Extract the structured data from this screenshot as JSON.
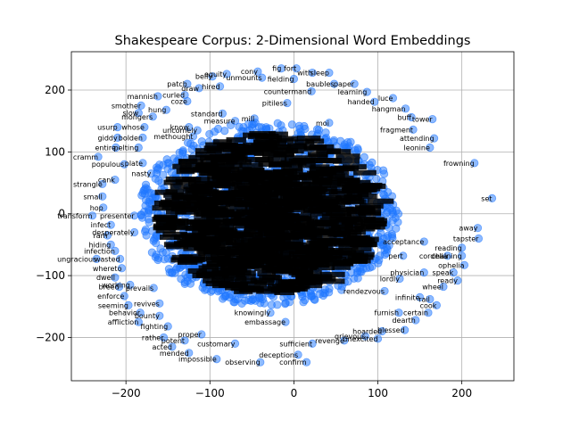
{
  "chart_data": {
    "type": "scatter",
    "title": "Shakespeare Corpus: 2-Dimensional Word Embeddings",
    "xlabel": "",
    "ylabel": "",
    "xlim": [
      -265,
      262
    ],
    "ylim": [
      -270,
      262
    ],
    "xticks": [
      -200,
      -100,
      0,
      100,
      200
    ],
    "yticks": [
      -200,
      -100,
      0,
      100,
      200
    ],
    "xtick_labels": [
      "−200",
      "−100",
      "0",
      "100",
      "200"
    ],
    "ytick_labels": [
      "−200",
      "−100",
      "0",
      "100",
      "200"
    ],
    "grid": true,
    "marker_color": "#1f77ff",
    "marker_alpha": 0.5,
    "points": [
      {
        "label": "fig",
        "x": -15,
        "y": 235
      },
      {
        "label": "fort",
        "x": 3,
        "y": 235
      },
      {
        "label": "cony",
        "x": -43,
        "y": 230
      },
      {
        "label": "with",
        "x": 22,
        "y": 228
      },
      {
        "label": "sleep",
        "x": 42,
        "y": 228
      },
      {
        "label": "equity",
        "x": -80,
        "y": 226
      },
      {
        "label": "belly",
        "x": -97,
        "y": 222
      },
      {
        "label": "unmounts",
        "x": -38,
        "y": 220
      },
      {
        "label": "fielding",
        "x": 0,
        "y": 218
      },
      {
        "label": "patch",
        "x": -127,
        "y": 210
      },
      {
        "label": "draw",
        "x": -113,
        "y": 203
      },
      {
        "label": "hired",
        "x": -88,
        "y": 206
      },
      {
        "label": "baubles",
        "x": 48,
        "y": 210
      },
      {
        "label": "paper",
        "x": 72,
        "y": 210
      },
      {
        "label": "countermand",
        "x": 21,
        "y": 198
      },
      {
        "label": "learning",
        "x": 87,
        "y": 197
      },
      {
        "label": "mannish",
        "x": -162,
        "y": 190
      },
      {
        "label": "curled",
        "x": -130,
        "y": 192
      },
      {
        "label": "coze",
        "x": -127,
        "y": 182
      },
      {
        "label": "luce",
        "x": 118,
        "y": 187
      },
      {
        "label": "handed",
        "x": 96,
        "y": 181
      },
      {
        "label": "smother",
        "x": -182,
        "y": 175
      },
      {
        "label": "hung",
        "x": -152,
        "y": 168
      },
      {
        "label": "pitiless",
        "x": -8,
        "y": 179
      },
      {
        "label": "hangman",
        "x": 133,
        "y": 170
      },
      {
        "label": "slow",
        "x": -185,
        "y": 163
      },
      {
        "label": "standard",
        "x": -85,
        "y": 162
      },
      {
        "label": "mongers",
        "x": -168,
        "y": 157
      },
      {
        "label": "buff",
        "x": 140,
        "y": 156
      },
      {
        "label": "tower",
        "x": 165,
        "y": 153
      },
      {
        "label": "mill",
        "x": -47,
        "y": 154
      },
      {
        "label": "moi",
        "x": 42,
        "y": 147
      },
      {
        "label": "measure",
        "x": -70,
        "y": 150
      },
      {
        "label": "usurp",
        "x": -210,
        "y": 140
      },
      {
        "label": "whose",
        "x": -178,
        "y": 140
      },
      {
        "label": "fragment",
        "x": 142,
        "y": 136
      },
      {
        "label": "know",
        "x": -125,
        "y": 140
      },
      {
        "label": "giddy",
        "x": -210,
        "y": 123
      },
      {
        "label": "bolden",
        "x": -180,
        "y": 123
      },
      {
        "label": "attending",
        "x": 167,
        "y": 122
      },
      {
        "label": "methought",
        "x": -120,
        "y": 125
      },
      {
        "label": "uncomely",
        "x": -115,
        "y": 135
      },
      {
        "label": "entire",
        "x": -212,
        "y": 107
      },
      {
        "label": "pelting",
        "x": -185,
        "y": 107
      },
      {
        "label": "leonine",
        "x": 162,
        "y": 107
      },
      {
        "label": "cramm",
        "x": -233,
        "y": 92
      },
      {
        "label": "populous",
        "x": -202,
        "y": 80
      },
      {
        "label": "plate",
        "x": -180,
        "y": 82
      },
      {
        "label": "frowning",
        "x": 215,
        "y": 82
      },
      {
        "label": "nasty",
        "x": -170,
        "y": 65
      },
      {
        "label": "cank",
        "x": -213,
        "y": 55
      },
      {
        "label": "strangle",
        "x": -228,
        "y": 48
      },
      {
        "label": "small",
        "x": -228,
        "y": 28
      },
      {
        "label": "set",
        "x": 236,
        "y": 25
      },
      {
        "label": "hop",
        "x": -227,
        "y": 10
      },
      {
        "label": "transform",
        "x": -240,
        "y": -3
      },
      {
        "label": "presenter",
        "x": -190,
        "y": -3
      },
      {
        "label": "infect",
        "x": -218,
        "y": -18
      },
      {
        "label": "away",
        "x": 219,
        "y": -23
      },
      {
        "label": "desperately",
        "x": -190,
        "y": -30
      },
      {
        "label": "ram",
        "x": -222,
        "y": -35
      },
      {
        "label": "tapster",
        "x": 220,
        "y": -40
      },
      {
        "label": "acceptance",
        "x": 155,
        "y": -45
      },
      {
        "label": "hiding",
        "x": -218,
        "y": -50
      },
      {
        "label": "reading",
        "x": 200,
        "y": -55
      },
      {
        "label": "infection",
        "x": -213,
        "y": -60
      },
      {
        "label": "cordelia",
        "x": 183,
        "y": -68
      },
      {
        "label": "chaining",
        "x": 200,
        "y": -68
      },
      {
        "label": "wasted",
        "x": -207,
        "y": -73
      },
      {
        "label": "pert",
        "x": 130,
        "y": -68
      },
      {
        "label": "ungracious",
        "x": -235,
        "y": -73
      },
      {
        "label": "ophelia",
        "x": 203,
        "y": -83
      },
      {
        "label": "whereto",
        "x": -205,
        "y": -88
      },
      {
        "label": "physician",
        "x": 155,
        "y": -95
      },
      {
        "label": "speak",
        "x": 190,
        "y": -95
      },
      {
        "label": "dwell",
        "x": -213,
        "y": -103
      },
      {
        "label": "lordly",
        "x": 126,
        "y": -105
      },
      {
        "label": "ready",
        "x": 195,
        "y": -108
      },
      {
        "label": "breed",
        "x": -208,
        "y": -118
      },
      {
        "label": "working",
        "x": -195,
        "y": -115
      },
      {
        "label": "prevails",
        "x": -167,
        "y": -120
      },
      {
        "label": "wheel",
        "x": 178,
        "y": -118
      },
      {
        "label": "enforce",
        "x": -202,
        "y": -133
      },
      {
        "label": "rendezvous",
        "x": 108,
        "y": -125
      },
      {
        "label": "infinite",
        "x": 150,
        "y": -135
      },
      {
        "label": "seeming",
        "x": -197,
        "y": -148
      },
      {
        "label": "revives",
        "x": -160,
        "y": -145
      },
      {
        "label": "rail",
        "x": 162,
        "y": -138
      },
      {
        "label": "behavior",
        "x": -183,
        "y": -160
      },
      {
        "label": "knowingly",
        "x": -28,
        "y": -160
      },
      {
        "label": "embassage",
        "x": -10,
        "y": -175
      },
      {
        "label": "affliction",
        "x": -185,
        "y": -175
      },
      {
        "label": "bounty",
        "x": -160,
        "y": -165
      },
      {
        "label": "fighting",
        "x": -150,
        "y": -182
      },
      {
        "label": "proper",
        "x": -110,
        "y": -195
      },
      {
        "label": "rather",
        "x": -155,
        "y": -200
      },
      {
        "label": "potent",
        "x": -130,
        "y": -205
      },
      {
        "label": "acted",
        "x": -145,
        "y": -215
      },
      {
        "label": "mended",
        "x": -125,
        "y": -225
      },
      {
        "label": "customary",
        "x": -70,
        "y": -210
      },
      {
        "label": "impossible",
        "x": -92,
        "y": -235
      },
      {
        "label": "observing",
        "x": -40,
        "y": -240
      },
      {
        "label": "confirm",
        "x": 15,
        "y": -240
      },
      {
        "label": "sufficient",
        "x": 22,
        "y": -210
      },
      {
        "label": "deceptions",
        "x": 5,
        "y": -228
      },
      {
        "label": "grievous",
        "x": 85,
        "y": -198
      },
      {
        "label": "hoarded",
        "x": 105,
        "y": -190
      },
      {
        "label": "unexcited",
        "x": 100,
        "y": -202
      },
      {
        "label": "blessed",
        "x": 132,
        "y": -188
      },
      {
        "label": "furnish",
        "x": 125,
        "y": -160
      },
      {
        "label": "certain",
        "x": 160,
        "y": -160
      },
      {
        "label": "cook",
        "x": 170,
        "y": -148
      },
      {
        "label": "dearth",
        "x": 145,
        "y": -172
      },
      {
        "label": "revenge",
        "x": 60,
        "y": -205
      }
    ],
    "cluster_count": 1600
  }
}
